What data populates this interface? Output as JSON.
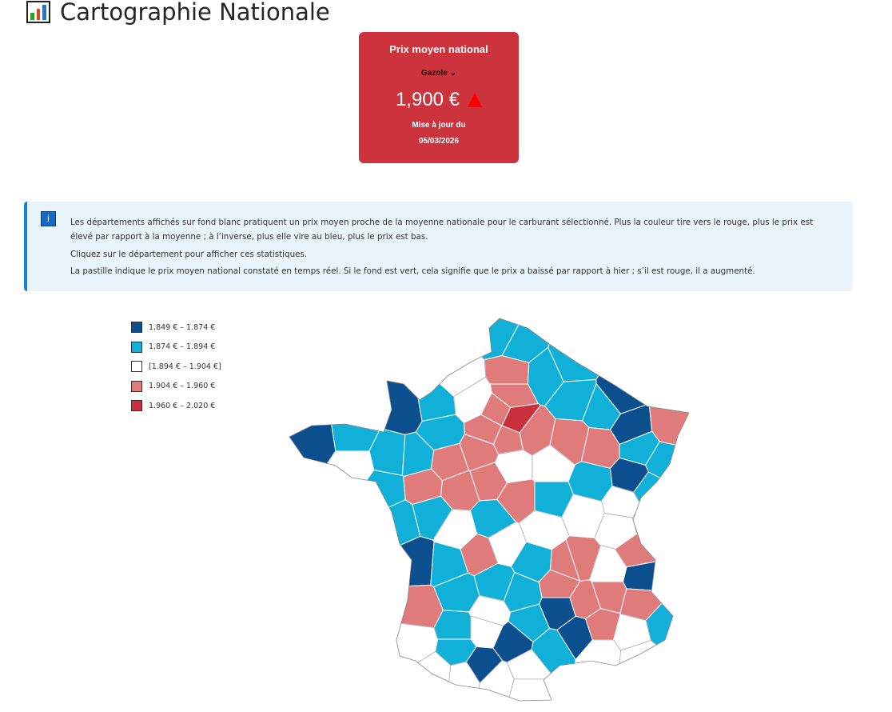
{
  "header": {
    "title": "Cartographie Nationale",
    "icon": "bar-chart-icon"
  },
  "price_card": {
    "heading": "Prix moyen national",
    "fuel": "Gazole",
    "price": "1,900 €",
    "trend": "up",
    "updated_label": "Mise à jour du",
    "updated_date": "05/03/2026",
    "bg_color": "#cc333c"
  },
  "info": {
    "icon": "info-icon",
    "lines": [
      "Les départements affichés sur fond blanc pratiquent un prix moyen proche de la moyenne nationale pour le carburant sélectionné. Plus la couleur tire vers le rouge, plus le prix est élevé par rapport à la moyenne ; à l’inverse, plus elle vire au bleu, plus le prix est bas.",
      "Cliquez sur le département pour afficher ces statistiques.",
      "La pastille indique le prix moyen national constaté en temps réel. Si le fond est vert, cela signifie que le prix a baissé par rapport à hier ; s’il est rouge, il a augmenté."
    ]
  },
  "legend": [
    {
      "label": "1.849 € – 1.874 €",
      "color": "#0b4f8f"
    },
    {
      "label": "1.874 € – 1.894 €",
      "color": "#11b0d8"
    },
    {
      "label": "[1.894 € – 1.904 €]",
      "color": "#ffffff"
    },
    {
      "label": "1.904 € – 1.960 €",
      "color": "#e07b7b"
    },
    {
      "label": "1.960 € – 2.020 €",
      "color": "#c9303b"
    }
  ],
  "map": {
    "department_classes": [
      1,
      1,
      3,
      1,
      1,
      2,
      0,
      1,
      2,
      3,
      3,
      4,
      1,
      1,
      0,
      0,
      3,
      1,
      1,
      3,
      3,
      3,
      3,
      3,
      0,
      1,
      2,
      0,
      1,
      2,
      1,
      1,
      1,
      3,
      3,
      2,
      2,
      1,
      1,
      3,
      3,
      3,
      3,
      1,
      2,
      2,
      2,
      1,
      1,
      2,
      1,
      2,
      3,
      3,
      3,
      2,
      0,
      1,
      3,
      2,
      1,
      3,
      3,
      3,
      0,
      3,
      1,
      2,
      3,
      2,
      0,
      1,
      1,
      1,
      1,
      0,
      3,
      2,
      1,
      1,
      2,
      0,
      2,
      1,
      0,
      2,
      2
    ]
  }
}
